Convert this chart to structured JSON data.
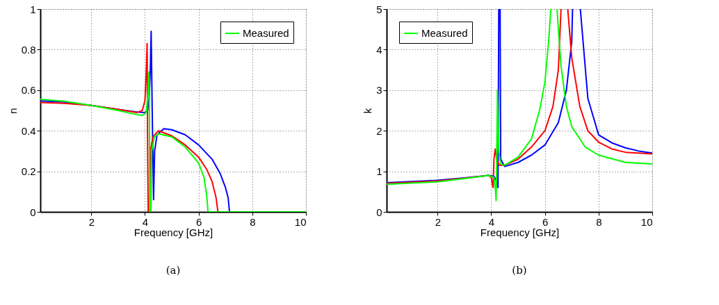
{
  "chart_data": [
    {
      "type": "line",
      "title": "(a)",
      "xlabel": "Frequency [GHz]",
      "ylabel": "n",
      "xlim": [
        0.1,
        10
      ],
      "ylim": [
        0,
        1
      ],
      "xticks": [
        2,
        4,
        6,
        8,
        10
      ],
      "yticks": [
        0,
        0.2,
        0.4,
        0.6,
        0.8,
        1
      ],
      "grid": true,
      "legend": "top right",
      "line_style": "solid",
      "series": [
        {
          "color": "#0000ff",
          "x": [
            0.1,
            1,
            2,
            3,
            3.7,
            4.0,
            4.1,
            4.15,
            4.2,
            4.23,
            4.27,
            4.32,
            4.36,
            4.45,
            4.7,
            5,
            5.5,
            6,
            6.5,
            6.8,
            7.0,
            7.1,
            7.15,
            8,
            10
          ],
          "values": [
            0.547,
            0.542,
            0.525,
            0.505,
            0.492,
            0.49,
            0.5,
            0.55,
            0.7,
            0.89,
            0.5,
            0.06,
            0.3,
            0.38,
            0.41,
            0.405,
            0.38,
            0.33,
            0.26,
            0.19,
            0.12,
            0.07,
            0,
            0,
            0
          ]
        },
        {
          "color": "#ff0000",
          "x": [
            0.1,
            1,
            2,
            3,
            3.7,
            3.9,
            4.0,
            4.05,
            4.08,
            4.1,
            4.12,
            4.18,
            4.2,
            4.3,
            4.5,
            5,
            5.5,
            6,
            6.3,
            6.5,
            6.65,
            6.72,
            10
          ],
          "values": [
            0.539,
            0.535,
            0.525,
            0.505,
            0.49,
            0.5,
            0.55,
            0.7,
            0.83,
            0.3,
            0,
            0,
            0.3,
            0.37,
            0.4,
            0.375,
            0.33,
            0.27,
            0.21,
            0.15,
            0.07,
            0,
            0
          ]
        },
        {
          "name": "Measured",
          "color": "#00ff00",
          "x": [
            0.1,
            1,
            2,
            3,
            3.5,
            3.9,
            4.05,
            4.12,
            4.15,
            4.17,
            4.18,
            4.22,
            4.25,
            4.35,
            4.5,
            5,
            5.5,
            6,
            6.2,
            6.3,
            6.35,
            10
          ],
          "values": [
            0.555,
            0.545,
            0.525,
            0.5,
            0.485,
            0.475,
            0.49,
            0.6,
            0.69,
            0.4,
            0,
            0,
            0.3,
            0.37,
            0.385,
            0.37,
            0.32,
            0.24,
            0.17,
            0.08,
            0,
            0
          ]
        }
      ]
    },
    {
      "type": "line",
      "title": "(b)",
      "xlabel": "Frequency [GHz]",
      "ylabel": "k",
      "xlim": [
        0.1,
        10
      ],
      "ylim": [
        0,
        5
      ],
      "xticks": [
        2,
        4,
        6,
        8,
        10
      ],
      "yticks": [
        0,
        1,
        2,
        3,
        4,
        5
      ],
      "grid": true,
      "legend": "top left",
      "line_style": "solid",
      "series": [
        {
          "color": "#0000ff",
          "x": [
            0.1,
            2,
            3,
            3.9,
            4.1,
            4.2,
            4.25,
            4.28,
            4.3,
            4.33,
            4.35,
            4.5,
            5,
            5.5,
            6,
            6.5,
            6.8,
            7.0,
            7.03,
            7.2,
            7.32,
            7.6,
            8,
            8.5,
            9,
            9.5,
            10
          ],
          "values": [
            0.72,
            0.78,
            0.84,
            0.9,
            0.88,
            0.75,
            0.6,
            5,
            null,
            5,
            1.3,
            1.12,
            1.22,
            1.4,
            1.65,
            2.2,
            3.0,
            4.2,
            5,
            null,
            5,
            2.8,
            1.9,
            1.7,
            1.58,
            1.5,
            1.45
          ]
        },
        {
          "color": "#ff0000",
          "x": [
            0.1,
            2,
            3,
            3.9,
            4.0,
            4.05,
            4.07,
            4.1,
            4.15,
            4.2,
            4.3,
            4.5,
            5,
            5.5,
            6,
            6.3,
            6.5,
            6.6,
            6.7,
            6.85,
            7,
            7.3,
            7.6,
            8,
            8.5,
            9,
            10
          ],
          "values": [
            0.7,
            0.76,
            0.83,
            0.9,
            0.85,
            0.65,
            0.6,
            1.3,
            1.55,
            1.3,
            1.15,
            1.15,
            1.3,
            1.6,
            2.0,
            2.6,
            3.5,
            5,
            null,
            5,
            3.8,
            2.6,
            2.0,
            1.72,
            1.55,
            1.47,
            1.43
          ]
        },
        {
          "name": "Measured",
          "color": "#00ff00",
          "x": [
            0.1,
            2,
            3,
            3.9,
            4.1,
            4.15,
            4.18,
            4.2,
            4.23,
            4.28,
            4.35,
            4.5,
            5,
            5.5,
            5.8,
            6.0,
            6.15,
            6.22,
            6.3,
            6.45,
            6.6,
            6.8,
            7,
            7.5,
            8,
            9,
            10
          ],
          "values": [
            0.68,
            0.74,
            0.82,
            0.9,
            0.85,
            0.6,
            0.28,
            1.0,
            3.0,
            1.5,
            1.18,
            1.15,
            1.35,
            1.8,
            2.5,
            3.2,
            4.3,
            5,
            null,
            5,
            3.6,
            2.6,
            2.1,
            1.6,
            1.4,
            1.22,
            1.18
          ]
        }
      ]
    }
  ]
}
